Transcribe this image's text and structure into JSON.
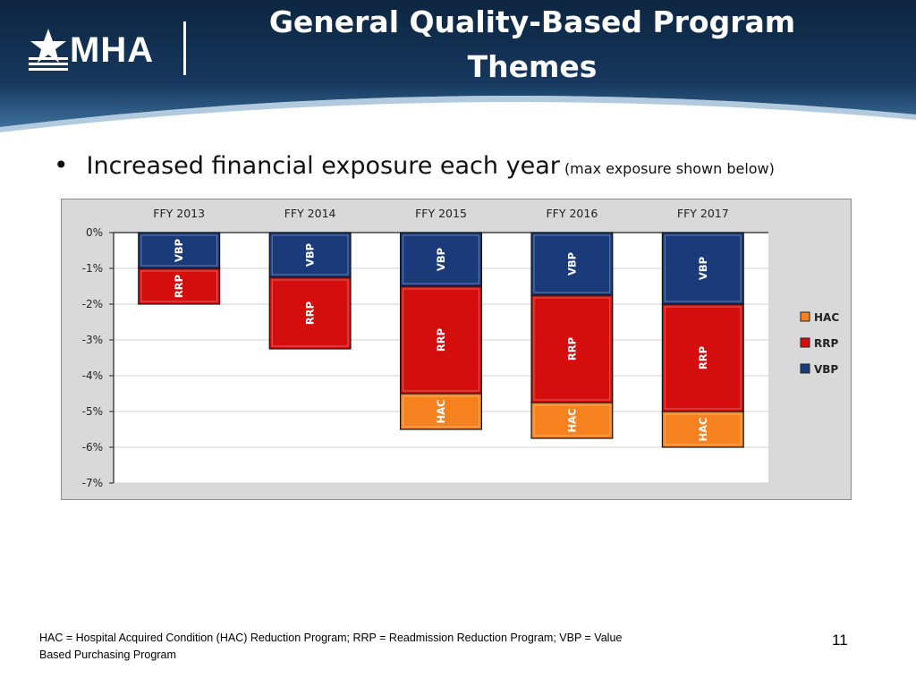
{
  "slide": {
    "title_line1": "General Quality-Based Program",
    "title_line2": "Themes",
    "logo_text": "MHA",
    "bullet_main": "Increased financial exposure each year",
    "bullet_sub": "(max exposure shown below)",
    "footnote_line1": "HAC = Hospital Acquired Condition (HAC) Reduction Program;  RRP = Readmission Reduction Program;  VBP = Value",
    "footnote_line2": "Based Purchasing Program",
    "page_number": "11"
  },
  "colors": {
    "banner_dark": "#0d2540",
    "banner_light": "#3c6e99",
    "VBP": "#1a3a7a",
    "RRP": "#d40d0d",
    "HAC": "#f5821f",
    "plot_bg": "#ffffff",
    "chart_bg": "#d9d9d9"
  },
  "chart_data": {
    "type": "bar",
    "stacked": true,
    "categories": [
      "FFY 2013",
      "FFY 2014",
      "FFY 2015",
      "FFY 2016",
      "FFY 2017"
    ],
    "series": [
      {
        "name": "VBP",
        "values": [
          -1.0,
          -1.25,
          -1.5,
          -1.75,
          -2.0
        ]
      },
      {
        "name": "RRP",
        "values": [
          -1.0,
          -2.0,
          -3.0,
          -3.0,
          -3.0
        ]
      },
      {
        "name": "HAC",
        "values": [
          0,
          0,
          -1.0,
          -1.0,
          -1.0
        ]
      }
    ],
    "ylim": [
      -7,
      0
    ],
    "yticks": [
      "0%",
      "-1%",
      "-2%",
      "-3%",
      "-4%",
      "-5%",
      "-6%",
      "-7%"
    ],
    "ytick_values": [
      0,
      -1,
      -2,
      -3,
      -4,
      -5,
      -6,
      -7
    ],
    "legend": [
      "HAC",
      "RRP",
      "VBP"
    ],
    "legend_position": "right",
    "category_axis_position": "top",
    "grid": true
  }
}
